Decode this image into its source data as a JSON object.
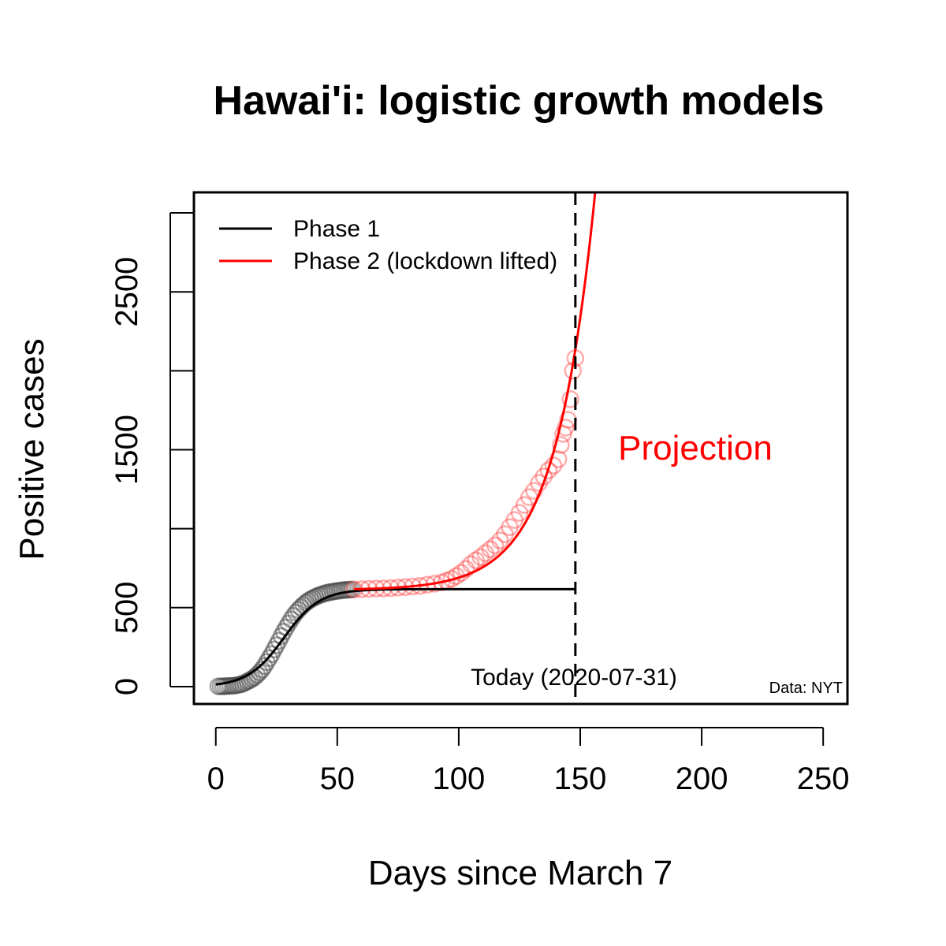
{
  "chart_data": {
    "type": "scatter",
    "title": "Hawai'i: logistic growth models",
    "xlabel": "Days since March 7",
    "ylabel": "Positive cases",
    "xlim": [
      -9,
      260
    ],
    "ylim": [
      -110,
      3130
    ],
    "x_ticks": [
      0,
      50,
      100,
      150,
      200,
      250
    ],
    "y_ticks": [
      0,
      500,
      1000,
      1500,
      2000,
      2500,
      3000
    ],
    "y_tick_labels": [
      "0",
      "500",
      "",
      "1500",
      "",
      "2500",
      ""
    ],
    "grid": false,
    "legend_position": "top-left",
    "legend": [
      {
        "label": "Phase 1",
        "color": "#000000"
      },
      {
        "label": "Phase 2 (lockdown lifted)",
        "color": "#ff0000"
      }
    ],
    "annotations": {
      "today": "Today (2020-07-31)",
      "today_x": 148,
      "projection": "Projection",
      "source": "Data: NYT"
    },
    "series": [
      {
        "name": "Phase 1",
        "color": "#000000",
        "points_x": [
          1,
          2,
          3,
          4,
          5,
          6,
          7,
          8,
          9,
          10,
          11,
          12,
          13,
          14,
          15,
          16,
          17,
          18,
          19,
          20,
          21,
          22,
          23,
          24,
          25,
          26,
          27,
          28,
          29,
          30,
          31,
          32,
          33,
          34,
          35,
          36,
          37,
          38,
          39,
          40,
          41,
          42,
          43,
          44,
          45,
          46,
          47,
          48,
          49,
          50,
          51,
          52,
          53,
          54,
          55,
          56
        ],
        "points_y": [
          2,
          2,
          2,
          3,
          4,
          5,
          5,
          7,
          10,
          14,
          17,
          25,
          33,
          40,
          50,
          60,
          75,
          90,
          108,
          130,
          155,
          180,
          205,
          235,
          262,
          290,
          320,
          348,
          375,
          400,
          425,
          448,
          468,
          486,
          502,
          517,
          530,
          542,
          552,
          560,
          568,
          575,
          581,
          586,
          591,
          595,
          598,
          601,
          604,
          606,
          608,
          610,
          612,
          613,
          614,
          615
        ],
        "fit_x": [
          0,
          148
        ],
        "fit_params": {
          "K": 617,
          "r": 0.135,
          "t0": 28
        }
      },
      {
        "name": "Phase 2 (lockdown lifted)",
        "color": "#ff0000",
        "points_x": [
          57,
          60,
          63,
          66,
          69,
          72,
          75,
          78,
          81,
          84,
          87,
          90,
          93,
          95,
          97,
          99,
          101,
          103,
          105,
          107,
          109,
          111,
          113,
          115,
          117,
          119,
          121,
          123,
          125,
          127,
          129,
          131,
          133,
          135,
          137,
          139,
          141,
          142,
          143,
          144,
          145,
          146,
          147,
          148
        ],
        "points_y": [
          615,
          617,
          619,
          621,
          622,
          624,
          627,
          630,
          634,
          638,
          645,
          652,
          660,
          670,
          682,
          700,
          720,
          745,
          775,
          800,
          820,
          845,
          870,
          895,
          925,
          965,
          1010,
          1055,
          1100,
          1150,
          1200,
          1240,
          1290,
          1330,
          1370,
          1400,
          1440,
          1530,
          1600,
          1640,
          1690,
          1820,
          2000,
          2080
        ],
        "fit_x": [
          57,
          175
        ],
        "fit_params": {
          "base": 617,
          "A": 5.5,
          "r": 0.0618,
          "t0": 57
        }
      }
    ]
  }
}
